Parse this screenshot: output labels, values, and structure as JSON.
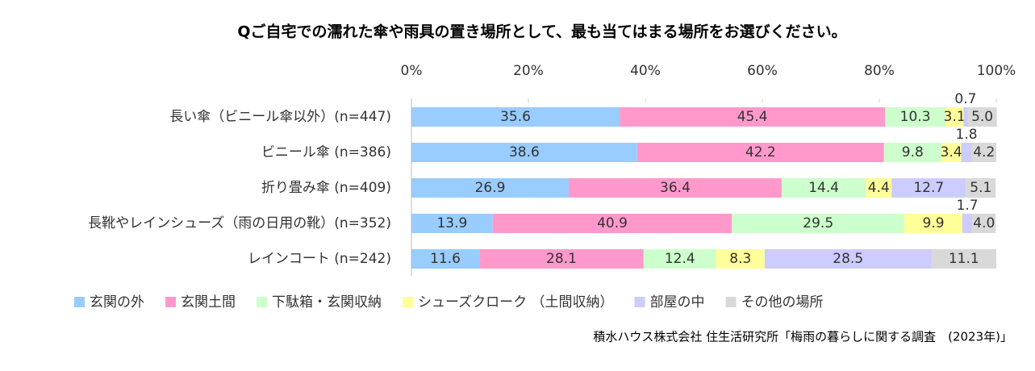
{
  "chart_data": {
    "type": "stacked-bar-horizontal",
    "title": "Qご自宅での濡れた傘や雨具の置き場所として、最も当てはまる場所をお選びください。",
    "categories": [
      "長い傘（ビニール傘以外）(n=447)",
      "ビニール傘 (n=386)",
      "折り畳み傘 (n=409)",
      "長靴やレインシューズ（雨の日用の靴）(n=352)",
      "レインコート (n=242)"
    ],
    "series": [
      {
        "name": "玄関の外",
        "color": "#99ccff",
        "values": [
          35.6,
          38.6,
          26.9,
          13.9,
          11.6
        ]
      },
      {
        "name": "玄関土間",
        "color": "#ff99cc",
        "values": [
          45.4,
          42.2,
          36.4,
          40.9,
          28.1
        ]
      },
      {
        "name": "下駄箱・玄関収納",
        "color": "#ccffcc",
        "values": [
          10.3,
          9.8,
          14.4,
          29.5,
          12.4
        ]
      },
      {
        "name": "シューズクローク （土間収納）",
        "color": "#ffff99",
        "values": [
          3.1,
          3.4,
          4.4,
          9.9,
          8.3
        ]
      },
      {
        "name": "部屋の中",
        "color": "#ccccff",
        "values": [
          0.7,
          1.8,
          12.7,
          1.7,
          28.5
        ]
      },
      {
        "name": "その他の場所",
        "color": "#d9d9d9",
        "values": [
          5.0,
          4.2,
          5.1,
          4.0,
          11.1
        ],
        "value_labels": [
          "5.0",
          "4.2",
          "5.1",
          "4.0",
          "11.1"
        ]
      }
    ],
    "xlim": [
      0,
      100
    ],
    "xticks": [
      {
        "value": 0,
        "label": "0%"
      },
      {
        "value": 20,
        "label": "20%"
      },
      {
        "value": 40,
        "label": "40%"
      },
      {
        "value": 60,
        "label": "60%"
      },
      {
        "value": 80,
        "label": "80%"
      },
      {
        "value": 100,
        "label": "100%"
      }
    ],
    "grid": false,
    "legend": "bottom",
    "source": "積水ハウス株式会社 住生活研究所「梅雨の暮らしに関する調査　(2023年)」"
  }
}
